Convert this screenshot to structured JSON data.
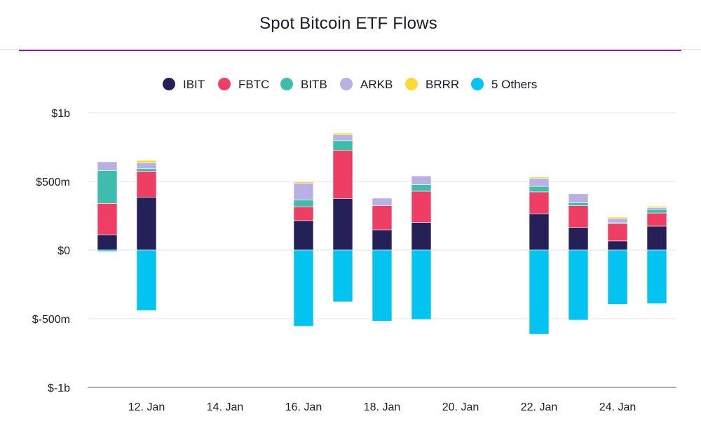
{
  "title": "Spot Bitcoin ETF Flows",
  "colors": {
    "IBIT": "#262058",
    "FBTC": "#ef3e64",
    "BITB": "#3fbcac",
    "ARKB": "#b7b2e3",
    "BRRR": "#fbd93b",
    "5 Others": "#03c4f0",
    "accent": "#8e17ce"
  },
  "chart_data": {
    "type": "bar",
    "stacked": true,
    "title": "Spot Bitcoin ETF Flows",
    "ylim": [
      -1000,
      1000
    ],
    "yticks": [
      {
        "value": 1000,
        "label": "$1b"
      },
      {
        "value": 500,
        "label": "$500m"
      },
      {
        "value": 0,
        "label": "$0"
      },
      {
        "value": -500,
        "label": "$-500m"
      },
      {
        "value": -1000,
        "label": "$-1b"
      }
    ],
    "xticks": [
      {
        "day": 12,
        "label": "12. Jan"
      },
      {
        "day": 14,
        "label": "14. Jan"
      },
      {
        "day": 16,
        "label": "16. Jan"
      },
      {
        "day": 18,
        "label": "18. Jan"
      },
      {
        "day": 20,
        "label": "20. Jan"
      },
      {
        "day": 22,
        "label": "22. Jan"
      },
      {
        "day": 24,
        "label": "24. Jan"
      }
    ],
    "x_day_range": [
      10.5,
      25.5
    ],
    "grid": true,
    "legend_position": "top-center",
    "categories": [
      "11. Jan",
      "12. Jan",
      "16. Jan",
      "17. Jan",
      "18. Jan",
      "19. Jan",
      "22. Jan",
      "23. Jan",
      "24. Jan",
      "25. Jan"
    ],
    "category_days": [
      11,
      12,
      16,
      17,
      18,
      19,
      22,
      23,
      24,
      25
    ],
    "series": [
      {
        "name": "IBIT",
        "values": [
          112,
          386,
          215,
          376,
          148,
          202,
          265,
          165,
          67,
          174
        ]
      },
      {
        "name": "FBTC",
        "values": [
          228,
          188,
          101,
          350,
          176,
          227,
          159,
          158,
          126,
          96
        ]
      },
      {
        "name": "BITB",
        "values": [
          238,
          19,
          49,
          71,
          0,
          48,
          40,
          21,
          6,
          25
        ]
      },
      {
        "name": "ARKB",
        "values": [
          65,
          42,
          123,
          42,
          54,
          63,
          59,
          65,
          30,
          14
        ]
      },
      {
        "name": "BRRR",
        "values": [
          0,
          18,
          10,
          13,
          0,
          0,
          10,
          0,
          11,
          10
        ]
      },
      {
        "name": "5 Others",
        "values": [
          -10,
          -440,
          -555,
          -377,
          -518,
          -505,
          -613,
          -510,
          -395,
          -390
        ]
      }
    ]
  }
}
